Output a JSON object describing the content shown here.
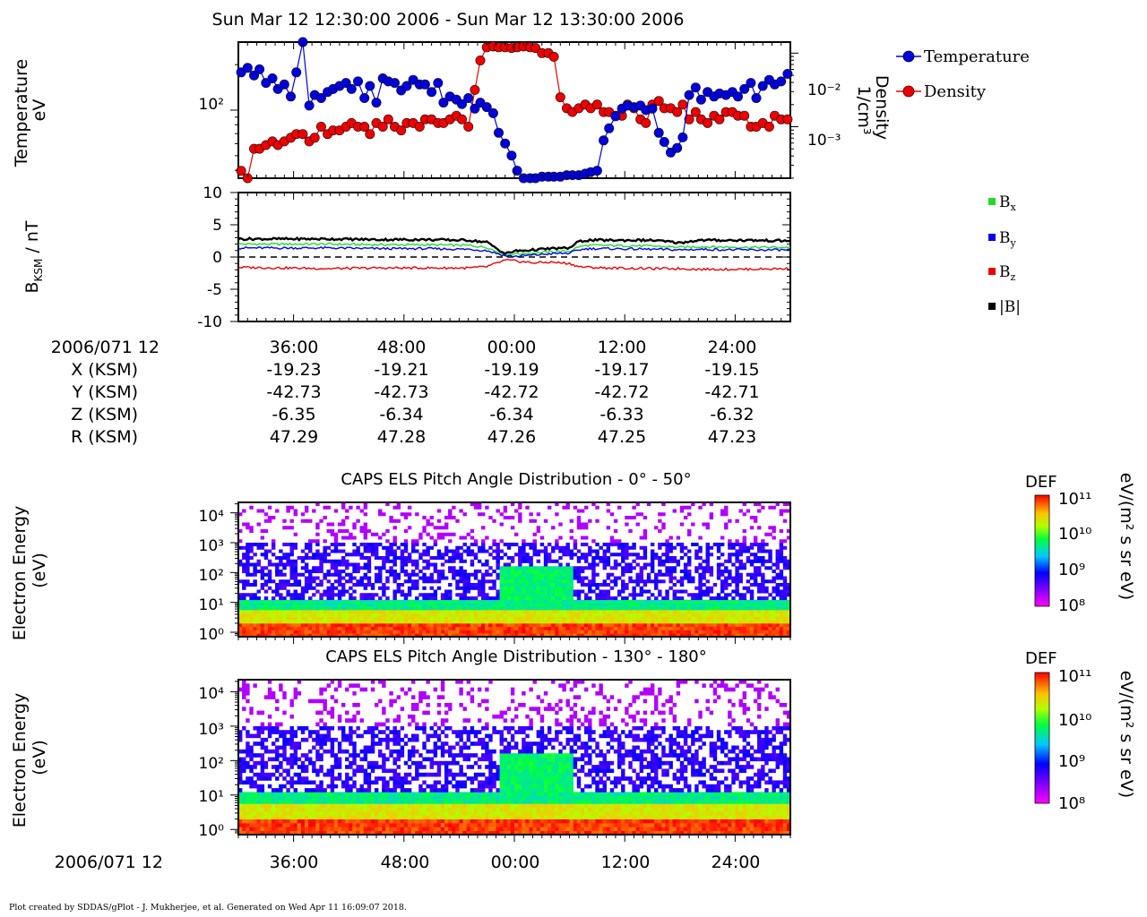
{
  "title": "Sun Mar 12 12:30:00 2006 - Sun Mar 12 13:30:00 2006",
  "footer": "Plot created by SDDAS/gPlot - J. Mukherjee, et al.  Generated on Wed Apr 11 16:09:07 2018.",
  "colors": {
    "temperature": "#0000dd",
    "density": "#ee0000",
    "bx": "#22dd22",
    "by": "#0000ee",
    "bz": "#ee0000",
    "btot": "#000000"
  },
  "ephemeris": {
    "date_label": "2006/071 12",
    "tick_labels": [
      "36:00",
      "48:00",
      "00:00",
      "12:00",
      "24:00"
    ],
    "rows": [
      {
        "label": "X (KSM)",
        "values": [
          "-19.23",
          "-19.21",
          "-19.19",
          "-19.17",
          "-19.15"
        ]
      },
      {
        "label": "Y (KSM)",
        "values": [
          "-42.73",
          "-42.73",
          "-42.72",
          "-42.72",
          "-42.71"
        ]
      },
      {
        "label": "Z (KSM)",
        "values": [
          "-6.35",
          "-6.34",
          "-6.34",
          "-6.33",
          "-6.32"
        ]
      },
      {
        "label": "R (KSM)",
        "values": [
          "47.29",
          "47.28",
          "47.26",
          "47.25",
          "47.23"
        ]
      }
    ]
  },
  "bottom_axis": {
    "date_label": "2006/071 12",
    "tick_labels": [
      "36:00",
      "48:00",
      "00:00",
      "12:00",
      "24:00"
    ]
  },
  "colorbar": {
    "title": "DEF",
    "units": "eV/(m² s sr eV)",
    "tick_labels": [
      "10¹¹",
      "10¹⁰",
      "10⁹",
      "10⁸"
    ]
  },
  "chart_data": [
    {
      "type": "line",
      "panel": "plasma-moments",
      "ylabel": "Temperature\neV",
      "y2label": "Density\n1/cm³",
      "y_tick_labels": [
        "10²"
      ],
      "y2_tick_labels": [
        "10⁻²",
        "10⁻³"
      ],
      "ylim_log10": [
        1.55,
        2.45
      ],
      "y2lim_log10": [
        -3.7,
        -1.85
      ],
      "legend": [
        "Temperature",
        "Density"
      ],
      "legend_position": "top-right-outside",
      "x_minutes": [
        30.3,
        31.0,
        31.7,
        32.3,
        33.0,
        33.7,
        34.3,
        35.0,
        35.7,
        36.3,
        37.0,
        37.7,
        38.3,
        39.0,
        39.7,
        40.3,
        41.0,
        41.7,
        42.3,
        43.0,
        43.7,
        44.3,
        45.0,
        45.7,
        46.3,
        47.0,
        47.7,
        48.3,
        49.0,
        49.7,
        50.3,
        51.0,
        51.7,
        52.3,
        53.0,
        53.7,
        54.3,
        55.0,
        55.7,
        56.3,
        57.0,
        57.7,
        58.3,
        59.0,
        59.7,
        60.3,
        61.0,
        61.7,
        62.3,
        63.0,
        63.7,
        64.3,
        65.0,
        65.7,
        66.3,
        67.0,
        67.7,
        68.3,
        69.0,
        69.7,
        70.3,
        71.0,
        71.7,
        72.3,
        73.0,
        73.7,
        74.3,
        75.0,
        75.7,
        76.3,
        77.0,
        77.7,
        78.3,
        79.0,
        79.7,
        80.3,
        81.0,
        81.7,
        82.3,
        83.0,
        83.7,
        84.3,
        85.0,
        85.7,
        86.3,
        87.0,
        87.7,
        88.3,
        89.0,
        89.7
      ],
      "temperature_log10": [
        2.25,
        2.28,
        2.23,
        2.27,
        2.18,
        2.21,
        2.14,
        2.17,
        2.09,
        2.25,
        2.45,
        2.03,
        2.1,
        2.08,
        2.12,
        2.14,
        2.16,
        2.18,
        2.14,
        2.19,
        2.08,
        2.16,
        2.05,
        2.21,
        2.19,
        2.18,
        2.13,
        2.16,
        2.2,
        2.17,
        2.17,
        2.12,
        2.18,
        2.05,
        2.09,
        2.07,
        2.04,
        2.08,
        2.01,
        2.05,
        2.02,
        1.98,
        1.85,
        1.78,
        1.7,
        1.6,
        1.55,
        1.55,
        1.55,
        1.56,
        1.56,
        1.56,
        1.56,
        1.57,
        1.57,
        1.57,
        1.58,
        1.59,
        1.6,
        1.8,
        1.88,
        1.96,
        2.01,
        2.03,
        2.02,
        2.03,
        2.0,
        2.01,
        1.85,
        1.79,
        1.72,
        1.75,
        1.82,
        2.1,
        2.15,
        2.07,
        2.12,
        2.09,
        2.11,
        2.1,
        2.12,
        2.09,
        2.14,
        2.18,
        2.08,
        2.16,
        2.2,
        2.17,
        2.19,
        2.24
      ],
      "density_log10": [
        -3.6,
        -3.9,
        -3.3,
        -3.3,
        -3.25,
        -3.2,
        -3.25,
        -3.2,
        -3.15,
        -3.1,
        -3.1,
        -3.2,
        -3.15,
        -3.0,
        -3.1,
        -3.05,
        -3.05,
        -3.0,
        -2.95,
        -3.0,
        -3.0,
        -3.1,
        -2.95,
        -3.0,
        -2.9,
        -3.0,
        -3.05,
        -2.95,
        -2.95,
        -3.0,
        -2.9,
        -2.9,
        -2.95,
        -2.95,
        -2.9,
        -2.85,
        -2.9,
        -3.0,
        -2.5,
        -2.1,
        -1.92,
        -1.91,
        -1.92,
        -1.92,
        -1.93,
        -1.92,
        -1.91,
        -1.92,
        -1.93,
        -2.0,
        -2.0,
        -2.05,
        -2.6,
        -2.75,
        -2.8,
        -2.75,
        -2.7,
        -2.75,
        -2.7,
        -2.8,
        -2.8,
        -2.85,
        -2.85,
        -2.7,
        -2.75,
        -2.9,
        -2.95,
        -2.7,
        -2.65,
        -2.75,
        -2.75,
        -2.8,
        -2.7,
        -2.9,
        -2.8,
        -2.9,
        -2.95,
        -2.85,
        -2.9,
        -2.8,
        -2.8,
        -2.85,
        -2.85,
        -3.0,
        -3.0,
        -2.95,
        -3.0,
        -2.85,
        -2.9,
        -2.9
      ]
    },
    {
      "type": "line",
      "panel": "magnetic-field",
      "ylabel": "B_KSM / nT",
      "ylim": [
        -10,
        10
      ],
      "y_tick_labels": [
        "10",
        "5",
        "0",
        "-5",
        "-10"
      ],
      "legend": [
        "Bx",
        "By",
        "Bz",
        "|B|"
      ],
      "legend_position": "right-outside",
      "x_minutes": [
        30,
        35,
        40,
        45,
        50,
        55,
        57,
        59,
        60,
        62,
        64,
        66,
        67,
        68,
        70,
        75,
        78,
        80,
        85,
        90
      ],
      "series": [
        {
          "name": "Bx",
          "values": [
            2.0,
            2.0,
            2.0,
            1.9,
            1.9,
            1.8,
            1.5,
            0.3,
            0.5,
            0.6,
            0.8,
            0.9,
            1.6,
            1.8,
            1.8,
            1.7,
            1.5,
            1.6,
            1.5,
            1.5
          ]
        },
        {
          "name": "By",
          "values": [
            1.4,
            1.4,
            1.4,
            1.3,
            1.3,
            1.2,
            1.0,
            0.2,
            0.1,
            0.3,
            0.5,
            0.6,
            1.1,
            1.3,
            1.3,
            1.2,
            1.1,
            1.2,
            1.1,
            1.1
          ]
        },
        {
          "name": "Bz",
          "values": [
            -1.6,
            -1.7,
            -1.8,
            -1.7,
            -1.7,
            -1.7,
            -1.5,
            -0.5,
            -0.6,
            -0.9,
            -0.8,
            -1.0,
            -1.5,
            -1.6,
            -1.7,
            -1.8,
            -1.8,
            -1.9,
            -1.9,
            -1.8
          ]
        },
        {
          "name": "|B|",
          "values": [
            2.8,
            2.8,
            2.8,
            2.7,
            2.7,
            2.6,
            2.3,
            0.5,
            0.9,
            1.1,
            1.3,
            1.4,
            2.4,
            2.6,
            2.6,
            2.6,
            2.2,
            2.6,
            2.6,
            2.5
          ]
        }
      ]
    },
    {
      "type": "heatmap",
      "panel": "els-pad-0-50",
      "title": "CAPS ELS Pitch Angle Distribution - 0° - 50°",
      "ylabel": "Electron Energy\n(eV)",
      "y_tick_labels": [
        "10⁴",
        "10³",
        "10²",
        "10¹",
        "10⁰"
      ],
      "ylim_log10": [
        -0.15,
        4.35
      ],
      "colorbar_log10": [
        8,
        11
      ]
    },
    {
      "type": "heatmap",
      "panel": "els-pad-130-180",
      "title": "CAPS ELS Pitch Angle Distribution - 130° - 180°",
      "ylabel": "Electron Energy\n(eV)",
      "y_tick_labels": [
        "10⁴",
        "10³",
        "10²",
        "10¹",
        "10⁰"
      ],
      "ylim_log10": [
        -0.15,
        4.35
      ],
      "colorbar_log10": [
        8,
        11
      ]
    }
  ]
}
